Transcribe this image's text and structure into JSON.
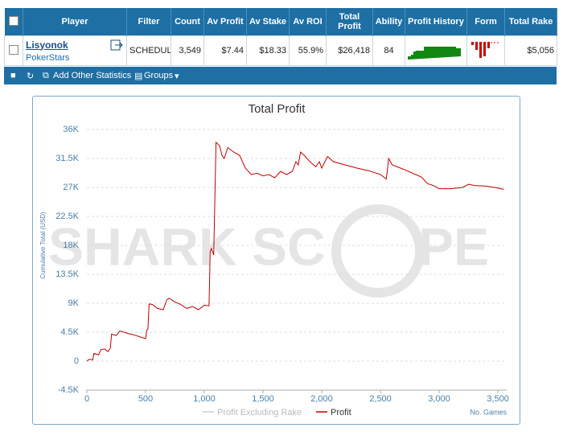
{
  "table": {
    "header": [
      "Player",
      "Filter",
      "Count",
      "Av Profit",
      "Av Stake",
      "Av ROI",
      "Total Profit",
      "Ability",
      "Profit History",
      "Form",
      "Total Rake"
    ],
    "rows": [
      {
        "player": "Lisyonok",
        "site": "PokerStars",
        "cells": [
          "SCHEDULI",
          "3,549",
          "$7.44",
          "$18.33",
          "55.9%",
          "$26,418",
          "84",
          "$5,056"
        ]
      }
    ]
  },
  "toolbar": {
    "add_stats": "Add Other Statistics",
    "groups": "Groups"
  },
  "chart_data": {
    "type": "line",
    "title": "Total Profit",
    "y_label": "Cumulative Total (USD)",
    "x_label": "No. Games",
    "watermark": [
      "SHARK SC",
      "PE"
    ],
    "xlim": [
      0,
      3575
    ],
    "ylim": [
      -4500,
      36000
    ],
    "xticks": [
      0,
      500,
      {
        "value": 1000,
        "label": "1,000"
      },
      {
        "value": 1500,
        "label": "1,500"
      },
      {
        "value": 2000,
        "label": "2,000"
      },
      {
        "value": 2500,
        "label": "2,500"
      },
      {
        "value": 3000,
        "label": "3,000"
      },
      {
        "value": 3500,
        "label": "3,500"
      }
    ],
    "yticks": [
      {
        "value": -4500,
        "label": "-4.5K"
      },
      0,
      {
        "value": 4500,
        "label": "4.5K"
      },
      {
        "value": 9000,
        "label": "9K"
      },
      {
        "value": 13500,
        "label": "13.5K"
      },
      {
        "value": 18000,
        "label": "18K"
      },
      {
        "value": 22500,
        "label": "22.5K"
      },
      {
        "value": 27000,
        "label": "27K"
      },
      {
        "value": 31500,
        "label": "31.5K"
      },
      {
        "value": 36000,
        "label": "36K"
      }
    ],
    "grid": true,
    "x": [
      0,
      20,
      50,
      60,
      100,
      120,
      150,
      180,
      200,
      210,
      250,
      280,
      320,
      350,
      400,
      450,
      500,
      510,
      520,
      530,
      560,
      600,
      650,
      680,
      700,
      750,
      800,
      850,
      900,
      950,
      1000,
      1040,
      1050,
      1060,
      1080,
      1100,
      1130,
      1150,
      1170,
      1200,
      1250,
      1300,
      1350,
      1400,
      1450,
      1500,
      1550,
      1600,
      1650,
      1700,
      1750,
      1780,
      1800,
      1820,
      1850,
      1900,
      1950,
      1980,
      2000,
      2050,
      2100,
      2200,
      2300,
      2400,
      2500,
      2550,
      2570,
      2600,
      2700,
      2800,
      2850,
      2900,
      2950,
      3000,
      3100,
      3200,
      3250,
      3300,
      3400,
      3500,
      3549
    ],
    "series": [
      {
        "name": "Profit Excluding Rake",
        "color": "#cccccc",
        "visible": false
      },
      {
        "name": "Profit",
        "color": "#c00000",
        "visible": true,
        "values": [
          0,
          300,
          200,
          1200,
          1000,
          1800,
          1900,
          1500,
          2000,
          4200,
          4000,
          4700,
          4500,
          4300,
          4100,
          3800,
          3500,
          4800,
          5000,
          8900,
          8800,
          8200,
          8000,
          9500,
          9800,
          9200,
          8800,
          8200,
          8500,
          8000,
          8700,
          8600,
          17000,
          17500,
          16500,
          34000,
          33500,
          32000,
          31500,
          33200,
          32500,
          32000,
          30000,
          29000,
          29200,
          28800,
          29000,
          28500,
          29500,
          29000,
          29500,
          31000,
          30500,
          32500,
          32000,
          31000,
          30200,
          31000,
          30000,
          31800,
          31000,
          30500,
          30000,
          29600,
          29000,
          28300,
          31500,
          30500,
          29800,
          29000,
          28600,
          27600,
          27300,
          26800,
          26800,
          27000,
          27500,
          27300,
          27200,
          26900,
          26700
        ]
      }
    ]
  }
}
